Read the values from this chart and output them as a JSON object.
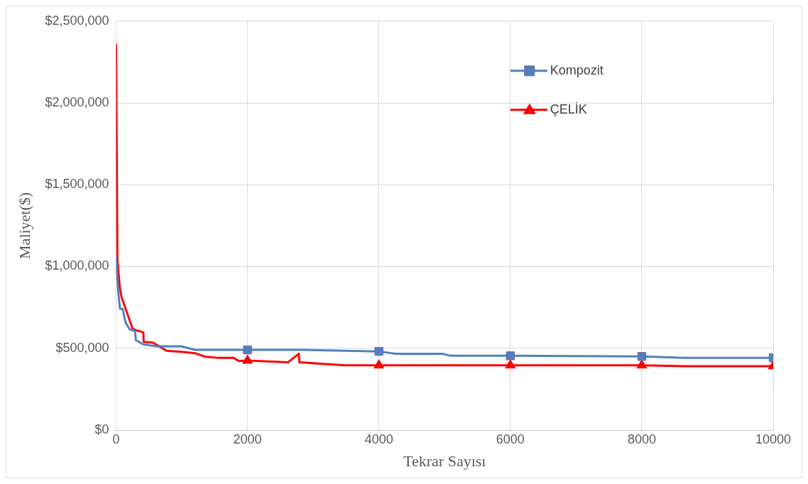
{
  "chart_data": {
    "type": "line",
    "xlabel": "Tekrar Sayısı",
    "ylabel": "Maliyet($)",
    "xlim": [
      0,
      10000
    ],
    "xticks": [
      0,
      2000,
      4000,
      6000,
      8000,
      10000
    ],
    "ylim": [
      0,
      2500000
    ],
    "yticks": [
      {
        "value": 0,
        "label": "$0"
      },
      {
        "value": 500000,
        "label": "$500,000"
      },
      {
        "value": 1000000,
        "label": "$1,000,000"
      },
      {
        "value": 1500000,
        "label": "$1,500,000"
      },
      {
        "value": 2000000,
        "label": "$2,000,000"
      },
      {
        "value": 2500000,
        "label": "$2,500,000"
      }
    ],
    "grid": true,
    "legend": "top right",
    "line_style": "solid",
    "series": [
      {
        "name": "Kompozit",
        "color": "#4f81bd",
        "x": [
          0,
          33,
          60,
          100,
          146,
          208,
          290,
          300,
          415,
          623,
          996,
          1204,
          2000,
          2864,
          4000,
          4253,
          4970,
          5095,
          6000,
          8000,
          8650,
          10000
        ],
        "values": [
          1050000,
          845000,
          741000,
          741000,
          656000,
          615000,
          606000,
          550000,
          524000,
          512000,
          512000,
          490000,
          490000,
          490000,
          481000,
          466000,
          466000,
          454000,
          454000,
          450000,
          442000,
          442000
        ]
      },
      {
        "name": "ÇELİK",
        "color": "#ff0000",
        "x": [
          0,
          20,
          57,
          83,
          249,
          290,
          415,
          420,
          560,
          768,
          996,
          1204,
          1349,
          1536,
          1785,
          1868,
          2000,
          2615,
          2781,
          2790,
          3487,
          3611,
          4000,
          6000,
          8000,
          8650,
          10000
        ],
        "values": [
          2360000,
          1040000,
          874000,
          814000,
          621000,
          612000,
          597000,
          539000,
          535000,
          485000,
          478000,
          470000,
          449000,
          442000,
          442000,
          422000,
          425000,
          414000,
          467000,
          414000,
          396000,
          396000,
          396000,
          396000,
          396000,
          391000,
          391000
        ]
      },
      {
        "type": "scatter",
        "color": "#4f81bd",
        "marker": "square",
        "x": [
          2000,
          4000,
          6000,
          8000,
          10000
        ],
        "values": [
          490000,
          481000,
          454000,
          450000,
          442000
        ]
      },
      {
        "type": "scatter",
        "color": "#ff0000",
        "marker": "triangle",
        "x": [
          2000,
          4000,
          6000,
          8000,
          10000
        ],
        "values": [
          425000,
          396000,
          396000,
          396000,
          391000
        ]
      }
    ]
  }
}
